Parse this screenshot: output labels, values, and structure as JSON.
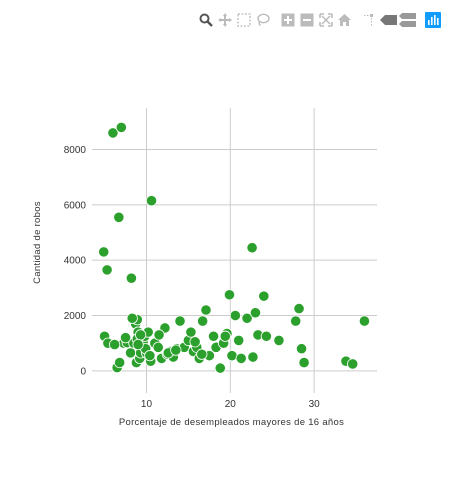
{
  "modebar": {
    "buttons": [
      {
        "name": "zoom-icon",
        "color": "#555555"
      },
      {
        "name": "pan-icon",
        "color": "#bbbbbb"
      },
      {
        "name": "box-select-icon",
        "color": "#bbbbbb"
      },
      {
        "name": "lasso-select-icon",
        "color": "#bbbbbb"
      },
      {
        "name": "zoom-in-icon",
        "color": "#bbbbbb"
      },
      {
        "name": "zoom-out-icon",
        "color": "#bbbbbb"
      },
      {
        "name": "autoscale-icon",
        "color": "#bbbbbb"
      },
      {
        "name": "reset-axes-icon",
        "color": "#bbbbbb"
      },
      {
        "name": "toggle-spike-lines-icon",
        "color": "#bbbbbb"
      },
      {
        "name": "hover-closest-icon",
        "color": "#777777"
      },
      {
        "name": "hover-compare-icon",
        "color": "#999999"
      },
      {
        "name": "plotly-logo-icon",
        "color": "#119dff"
      }
    ]
  },
  "chart_data": {
    "type": "scatter",
    "xlabel": "Porcentaje de desempleados mayores de 16 años",
    "ylabel": "Cantidad de robos",
    "xlim": [
      3.5,
      37.5
    ],
    "ylim": [
      -800,
      9500
    ],
    "xticks": [
      10,
      20,
      30
    ],
    "yticks": [
      0,
      2000,
      4000,
      6000,
      8000
    ],
    "grid": true,
    "marker_color": "#2ca02c",
    "x": [
      6.0,
      7.0,
      10.6,
      6.7,
      4.9,
      5.3,
      8.2,
      22.6,
      5.0,
      5.4,
      6.5,
      7.3,
      6.8,
      7.7,
      8.1,
      8.5,
      8.7,
      8.8,
      8.9,
      9.0,
      9.2,
      9.3,
      9.4,
      9.6,
      9.8,
      10.0,
      10.2,
      10.5,
      11.0,
      11.4,
      11.8,
      12.2,
      12.5,
      12.8,
      13.2,
      13.6,
      14.0,
      14.5,
      15.0,
      15.3,
      15.6,
      16.0,
      16.3,
      16.7,
      17.1,
      17.5,
      18.0,
      18.3,
      18.8,
      19.2,
      19.6,
      19.9,
      20.2,
      20.6,
      21.0,
      21.3,
      22.0,
      22.7,
      23.0,
      23.3,
      24.0,
      24.3,
      25.8,
      27.8,
      28.2,
      28.5,
      28.8,
      33.8,
      34.6,
      36.0,
      8.9,
      9.3,
      9.9,
      10.4,
      12.6,
      13.5,
      15.8,
      16.6,
      19.4,
      8.3,
      9.0,
      7.5,
      6.2,
      11.5
    ],
    "y": [
      8600,
      8800,
      6150,
      5550,
      4300,
      3650,
      3350,
      4450,
      1250,
      1000,
      120,
      1000,
      300,
      1020,
      650,
      1000,
      1700,
      300,
      1850,
      1400,
      450,
      650,
      1200,
      1050,
      1250,
      650,
      1400,
      350,
      1000,
      850,
      450,
      1550,
      600,
      700,
      500,
      800,
      1800,
      850,
      1100,
      1400,
      700,
      850,
      450,
      1800,
      2200,
      550,
      1250,
      850,
      100,
      1000,
      1350,
      2750,
      550,
      2000,
      1100,
      450,
      1900,
      500,
      2100,
      1300,
      2700,
      1250,
      1100,
      1800,
      2250,
      800,
      300,
      350,
      250,
      1800,
      1150,
      1300,
      800,
      550,
      650,
      750,
      1050,
      600,
      1250,
      1900,
      950,
      1200,
      950,
      1300
    ]
  }
}
